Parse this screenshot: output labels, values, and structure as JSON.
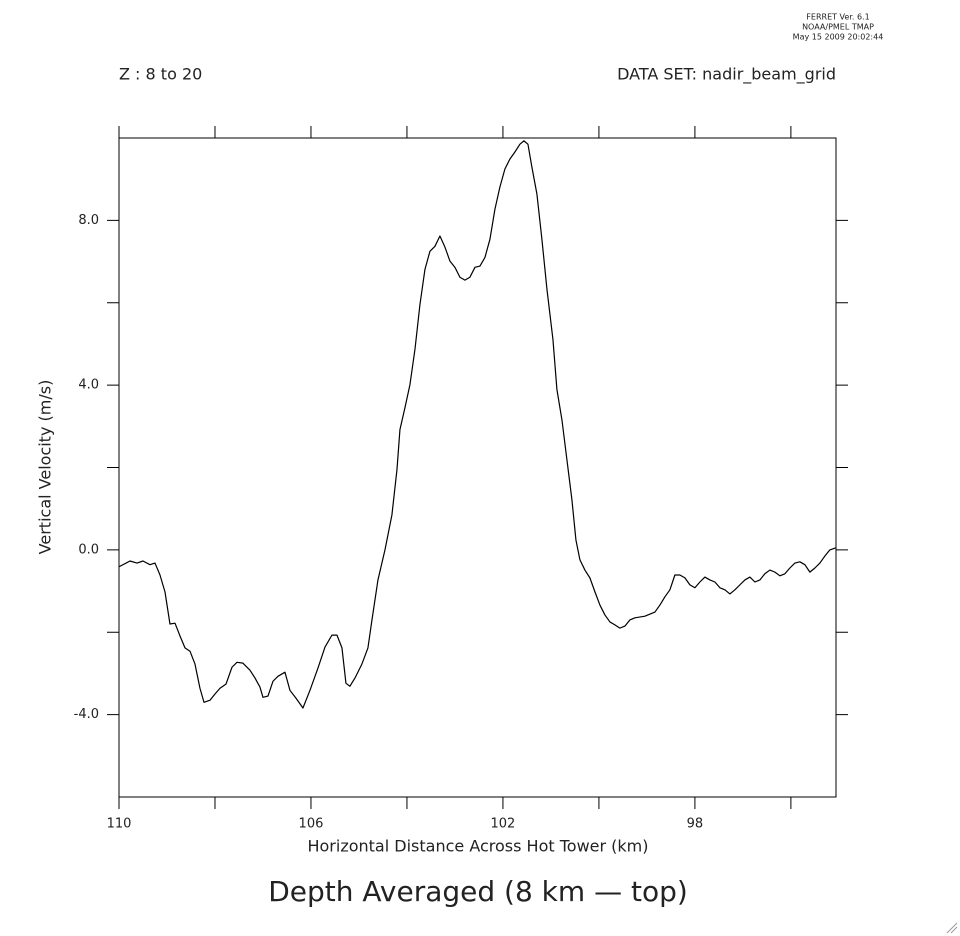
{
  "chart_data": {
    "type": "line",
    "header_lines": [
      "FERRET Ver. 6.1",
      "NOAA/PMEL TMAP",
      "May 15 2009 20:02:44"
    ],
    "left_note": "Z : 8 to 20",
    "right_note": "DATA SET: nadir_beam_grid",
    "title": "Depth Averaged (8 km — top)",
    "xlabel": "Horizontal Distance Across Hot Tower (km)",
    "ylabel": "Vertical Velocity (m/s)",
    "color": "#000000",
    "xlim": [
      110,
      95.06
    ],
    "ylim": [
      -6,
      10
    ],
    "xticks": [
      110,
      106,
      102,
      98
    ],
    "xminor_ticks": [
      108,
      104,
      100,
      96
    ],
    "yticks": [
      {
        "value": -4,
        "label": "-4.0"
      },
      {
        "value": 0,
        "label": "0.0"
      },
      {
        "value": 4,
        "label": "4.0"
      },
      {
        "value": 8,
        "label": "8.0"
      }
    ],
    "yminor_ticks": [
      -2,
      2,
      6
    ],
    "x": [
      110,
      109.771,
      109.625,
      109.5,
      109.354,
      109.25,
      109.146,
      109.042,
      108.938,
      108.833,
      108.729,
      108.625,
      108.521,
      108.417,
      108.313,
      108.229,
      108.104,
      108.0,
      107.896,
      107.771,
      107.646,
      107.542,
      107.417,
      107.271,
      107.167,
      107.063,
      107.0,
      106.896,
      106.792,
      106.688,
      106.542,
      106.438,
      106.313,
      106.167,
      106.021,
      105.854,
      105.708,
      105.563,
      105.458,
      105.354,
      105.271,
      105.188,
      105.083,
      104.938,
      104.813,
      104.729,
      104.604,
      104.458,
      104.313,
      104.208,
      104.146,
      104.042,
      103.938,
      103.833,
      103.729,
      103.625,
      103.521,
      103.417,
      103.313,
      103.208,
      103.104,
      103.0,
      102.896,
      102.792,
      102.688,
      102.583,
      102.479,
      102.375,
      102.271,
      102.167,
      102.063,
      101.958,
      101.854,
      101.75,
      101.646,
      101.563,
      101.479,
      101.396,
      101.292,
      101.188,
      101.083,
      100.958,
      100.875,
      100.771,
      100.667,
      100.563,
      100.479,
      100.396,
      100.292,
      100.188,
      100.083,
      99.979,
      99.875,
      99.771,
      99.667,
      99.563,
      99.458,
      99.354,
      99.25,
      99.042,
      98.833,
      98.729,
      98.625,
      98.521,
      98.417,
      98.313,
      98.208,
      98.104,
      98.0,
      97.896,
      97.792,
      97.688,
      97.583,
      97.479,
      97.375,
      97.271,
      97.167,
      97.063,
      96.958,
      96.854,
      96.75,
      96.646,
      96.542,
      96.438,
      96.333,
      96.229,
      96.125,
      96.021,
      95.917,
      95.813,
      95.708,
      95.604,
      95.5,
      95.396,
      95.292,
      95.188,
      95.063
    ],
    "values": [
      -0.41,
      -0.27,
      -0.32,
      -0.27,
      -0.36,
      -0.32,
      -0.61,
      -1.02,
      -1.8,
      -1.78,
      -2.09,
      -2.38,
      -2.46,
      -2.77,
      -3.36,
      -3.7,
      -3.65,
      -3.5,
      -3.36,
      -3.26,
      -2.85,
      -2.73,
      -2.75,
      -2.92,
      -3.11,
      -3.33,
      -3.58,
      -3.55,
      -3.19,
      -3.07,
      -2.97,
      -3.41,
      -3.6,
      -3.84,
      -3.41,
      -2.87,
      -2.36,
      -2.07,
      -2.07,
      -2.38,
      -3.24,
      -3.31,
      -3.11,
      -2.77,
      -2.38,
      -1.7,
      -0.73,
      0.0,
      0.85,
      1.95,
      2.92,
      3.45,
      4.01,
      4.87,
      5.96,
      6.81,
      7.25,
      7.37,
      7.62,
      7.35,
      7.01,
      6.86,
      6.62,
      6.55,
      6.62,
      6.86,
      6.89,
      7.1,
      7.54,
      8.27,
      8.81,
      9.25,
      9.49,
      9.66,
      9.85,
      9.93,
      9.85,
      9.29,
      8.64,
      7.54,
      6.33,
      5.11,
      3.89,
      3.16,
      2.19,
      1.22,
      0.24,
      -0.24,
      -0.49,
      -0.68,
      -1.02,
      -1.34,
      -1.58,
      -1.75,
      -1.82,
      -1.9,
      -1.85,
      -1.7,
      -1.65,
      -1.61,
      -1.51,
      -1.34,
      -1.14,
      -0.97,
      -0.61,
      -0.61,
      -0.68,
      -0.85,
      -0.92,
      -0.78,
      -0.66,
      -0.73,
      -0.78,
      -0.92,
      -0.97,
      -1.07,
      -0.97,
      -0.85,
      -0.73,
      -0.66,
      -0.78,
      -0.73,
      -0.58,
      -0.49,
      -0.54,
      -0.63,
      -0.58,
      -0.44,
      -0.32,
      -0.29,
      -0.36,
      -0.54,
      -0.44,
      -0.32,
      -0.15,
      0.0,
      0.05
    ]
  }
}
